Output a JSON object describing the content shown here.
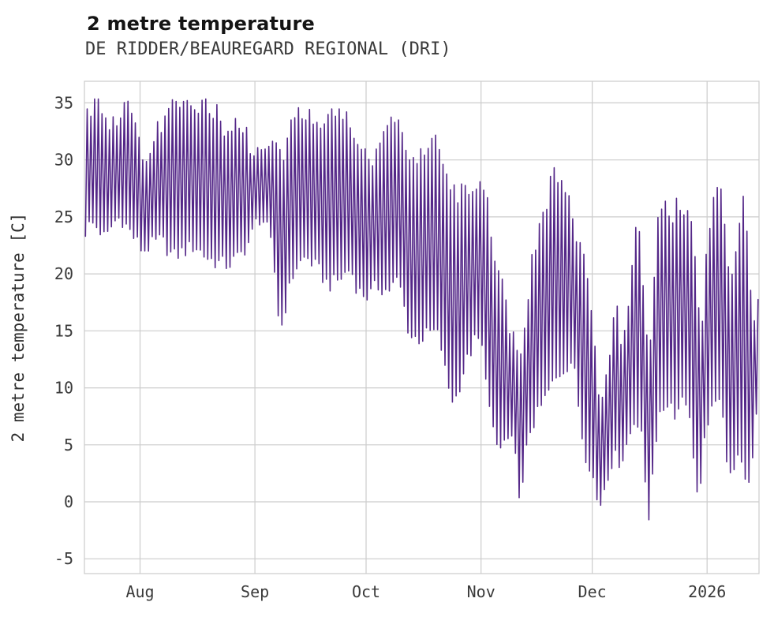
{
  "chart": {
    "title": "2 metre temperature",
    "subtitle": "DE RIDDER/BEAUREGARD REGIONAL (DRI)"
  },
  "chart_data": {
    "type": "line",
    "title": "2 metre temperature",
    "subtitle": "DE RIDDER/BEAUREGARD REGIONAL (DRI)",
    "station": "DE RIDDER/BEAUREGARD REGIONAL (DRI)",
    "xlabel": "",
    "ylabel": "2 metre temperature [C]",
    "ylim": [
      -6.3,
      36.9
    ],
    "yticks": [
      -5,
      0,
      5,
      10,
      15,
      20,
      25,
      30,
      35
    ],
    "grid": true,
    "legend": "none",
    "background": "#ffffff",
    "line_color": "#542788",
    "grid_color": "#cccccc",
    "tick_label_color": "#3a3a3a",
    "axis_label_color": "#2e2e2e",
    "x_axis": {
      "unit": "days since first sample",
      "start_label": "~Jul 17 2025",
      "end_label": "~Jan 15 2026",
      "t_max": 182
    },
    "xticks": [
      {
        "label": "Aug",
        "t": 15
      },
      {
        "label": "Sep",
        "t": 46
      },
      {
        "label": "Oct",
        "t": 76
      },
      {
        "label": "Nov",
        "t": 107
      },
      {
        "label": "Dec",
        "t": 137
      },
      {
        "label": "2026",
        "t": 168
      }
    ],
    "series_name": "2 metre temperature [C]",
    "observed_extremes": {
      "max_c": 35.3,
      "min_c": -3.7
    },
    "daily_envelope_keypoints": {
      "description": "Diurnal temperature envelope read from the plot: [day index t, daily min C, daily max C]. The plotted line oscillates daily between min and max.",
      "points": [
        [
          0,
          23.5,
          33.5
        ],
        [
          2,
          24.5,
          34.9
        ],
        [
          4,
          24.0,
          34.6
        ],
        [
          6,
          23.0,
          32.5
        ],
        [
          8,
          24.5,
          33.6
        ],
        [
          10,
          25.0,
          34.2
        ],
        [
          12,
          24.0,
          35.3
        ],
        [
          14,
          23.0,
          31.5
        ],
        [
          16,
          22.0,
          30.5
        ],
        [
          18,
          22.5,
          31.5
        ],
        [
          21,
          23.0,
          33.5
        ],
        [
          24,
          21.5,
          34.6
        ],
        [
          27,
          22.0,
          34.8
        ],
        [
          30,
          22.5,
          33.5
        ],
        [
          33,
          21.5,
          35.2
        ],
        [
          36,
          21.0,
          33.8
        ],
        [
          39,
          20.8,
          32.0
        ],
        [
          42,
          21.5,
          33.6
        ],
        [
          45,
          23.0,
          31.0
        ],
        [
          47,
          25.0,
          31.5
        ],
        [
          49,
          24.5,
          30.5
        ],
        [
          51,
          22.0,
          33.0
        ],
        [
          53,
          14.7,
          30.0
        ],
        [
          55,
          18.0,
          32.5
        ],
        [
          57,
          20.5,
          34.5
        ],
        [
          60,
          21.5,
          34.3
        ],
        [
          63,
          20.5,
          33.0
        ],
        [
          66,
          19.0,
          33.8
        ],
        [
          69,
          19.5,
          34.2
        ],
        [
          72,
          20.5,
          33.0
        ],
        [
          74,
          18.5,
          31.0
        ],
        [
          77,
          18.0,
          29.5
        ],
        [
          79,
          19.0,
          31.5
        ],
        [
          82,
          18.5,
          33.8
        ],
        [
          85,
          19.5,
          32.5
        ],
        [
          88,
          14.5,
          30.5
        ],
        [
          91,
          14.3,
          30.0
        ],
        [
          94,
          15.0,
          31.8
        ],
        [
          96,
          14.5,
          30.8
        ],
        [
          98,
          10.5,
          28.5
        ],
        [
          100,
          8.6,
          26.5
        ],
        [
          103,
          12.0,
          27.5
        ],
        [
          106,
          14.5,
          28.0
        ],
        [
          108,
          13.0,
          27.5
        ],
        [
          110,
          6.5,
          22.0
        ],
        [
          112,
          4.4,
          20.0
        ],
        [
          114,
          5.5,
          16.0
        ],
        [
          116,
          5.0,
          14.5
        ],
        [
          118,
          -0.3,
          13.0
        ],
        [
          120,
          6.0,
          20.5
        ],
        [
          123,
          8.0,
          24.5
        ],
        [
          126,
          10.0,
          28.5
        ],
        [
          129,
          11.5,
          28.3
        ],
        [
          132,
          12.5,
          24.0
        ],
        [
          135,
          4.5,
          20.5
        ],
        [
          137,
          3.0,
          15.0
        ],
        [
          139,
          -0.8,
          8.5
        ],
        [
          141,
          2.0,
          12.0
        ],
        [
          143,
          4.0,
          18.5
        ],
        [
          145,
          3.5,
          13.0
        ],
        [
          147,
          5.5,
          19.5
        ],
        [
          149,
          7.5,
          24.5
        ],
        [
          151,
          6.0,
          18.0
        ],
        [
          152,
          -3.7,
          10.0
        ],
        [
          154,
          5.0,
          24.0
        ],
        [
          156,
          8.0,
          26.0
        ],
        [
          158,
          9.0,
          24.5
        ],
        [
          160,
          7.5,
          26.5
        ],
        [
          162,
          10.0,
          25.0
        ],
        [
          164,
          6.0,
          24.0
        ],
        [
          166,
          -0.9,
          14.0
        ],
        [
          168,
          7.0,
          23.5
        ],
        [
          170,
          8.0,
          26.8
        ],
        [
          172,
          10.0,
          27.0
        ],
        [
          174,
          1.5,
          18.0
        ],
        [
          176,
          4.0,
          23.5
        ],
        [
          178,
          2.5,
          27.0
        ],
        [
          180,
          1.5,
          15.5
        ],
        [
          181,
          7.0,
          16.5
        ],
        [
          182,
          9.0,
          17.6
        ]
      ]
    }
  }
}
